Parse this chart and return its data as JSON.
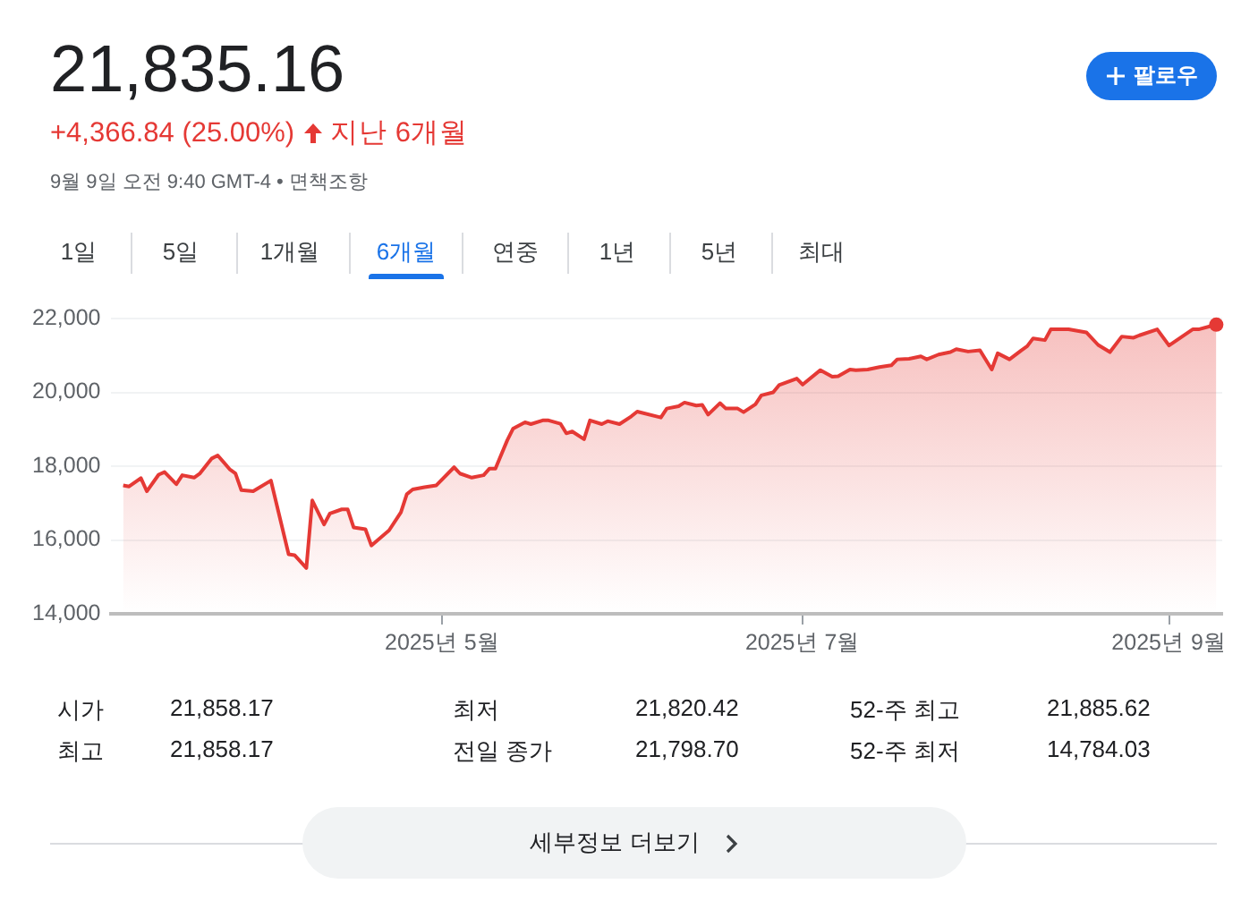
{
  "chart_data": {
    "type": "area",
    "title": "21,835.16",
    "subtitle": "+4,366.84 (25.00%)",
    "annotations": [
      "지난 6개월",
      "9월 9일 오전 9:40 GMT-4 • 면책조항",
      "팔로우",
      "1일",
      "5일",
      "1개월",
      "6개월",
      "연중",
      "1년",
      "5년",
      "최대",
      "시가",
      "21,858.17",
      "최저",
      "21,820.42",
      "52-주 최고",
      "21,885.62",
      "최고",
      "21,858.17",
      "전일 종가",
      "21,798.70",
      "52-주 최저",
      "14,784.03",
      "세부정보 더보기"
    ],
    "x": [
      "2025-03-08",
      "2025-03-09",
      "2025-03-11",
      "2025-03-12",
      "2025-03-14",
      "2025-03-15",
      "2025-03-17",
      "2025-03-18",
      "2025-03-20",
      "2025-03-21",
      "2025-03-23",
      "2025-03-24",
      "2025-03-26",
      "2025-03-27",
      "2025-03-28",
      "2025-03-30",
      "2025-04-02",
      "2025-04-05",
      "2025-04-06",
      "2025-04-08",
      "2025-04-09",
      "2025-04-11",
      "2025-04-12",
      "2025-04-14",
      "2025-04-15",
      "2025-04-16",
      "2025-04-18",
      "2025-04-19",
      "2025-04-22",
      "2025-04-24",
      "2025-04-25",
      "2025-04-26",
      "2025-04-28",
      "2025-04-30",
      "2025-05-03",
      "2025-05-04",
      "2025-05-06",
      "2025-05-08",
      "2025-05-09",
      "2025-05-10",
      "2025-05-12",
      "2025-05-13",
      "2025-05-15",
      "2025-05-16",
      "2025-05-18",
      "2025-05-19",
      "2025-05-21",
      "2025-05-22",
      "2025-05-23",
      "2025-05-25",
      "2025-05-26",
      "2025-05-28",
      "2025-05-29",
      "2025-05-31",
      "2025-06-02",
      "2025-06-03",
      "2025-06-07",
      "2025-06-08",
      "2025-06-10",
      "2025-06-11",
      "2025-06-13",
      "2025-06-14",
      "2025-06-15",
      "2025-06-17",
      "2025-06-18",
      "2025-06-20",
      "2025-06-21",
      "2025-06-23",
      "2025-06-24",
      "2025-06-26",
      "2025-06-27",
      "2025-06-30",
      "2025-07-01",
      "2025-07-04",
      "2025-07-06",
      "2025-07-07",
      "2025-07-09",
      "2025-07-10",
      "2025-07-12",
      "2025-07-14",
      "2025-07-16",
      "2025-07-17",
      "2025-07-19",
      "2025-07-21",
      "2025-07-22",
      "2025-07-24",
      "2025-07-26",
      "2025-07-27",
      "2025-07-29",
      "2025-07-31",
      "2025-08-02",
      "2025-08-03",
      "2025-08-05",
      "2025-08-07",
      "2025-08-08",
      "2025-08-09",
      "2025-08-11",
      "2025-08-12",
      "2025-08-15",
      "2025-08-18",
      "2025-08-20",
      "2025-08-22",
      "2025-08-24",
      "2025-08-26",
      "2025-08-27",
      "2025-08-30",
      "2025-09-01",
      "2025-09-05",
      "2025-09-06",
      "2025-09-09"
    ],
    "series": [
      {
        "color": "#e53935",
        "values": [
          17480,
          17450,
          17675,
          17320,
          17770,
          17840,
          17510,
          17755,
          17690,
          17805,
          18210,
          18290,
          17920,
          17805,
          17350,
          17320,
          17610,
          15610,
          15590,
          15240,
          17070,
          16420,
          16720,
          16830,
          16830,
          16340,
          16290,
          15850,
          16260,
          16750,
          17240,
          17370,
          17430,
          17480,
          17970,
          17800,
          17690,
          17755,
          17935,
          17935,
          18700,
          19020,
          19190,
          19140,
          19240,
          19240,
          19150,
          18890,
          18940,
          18730,
          19240,
          19140,
          19220,
          19140,
          19350,
          19480,
          19317,
          19560,
          19626,
          19724,
          19642,
          19659,
          19398,
          19707,
          19561,
          19561,
          19463,
          19675,
          19919,
          20000,
          20195,
          20374,
          20211,
          20602,
          20423,
          20439,
          20618,
          20602,
          20618,
          20683,
          20732,
          20894,
          20911,
          20976,
          20894,
          21024,
          21089,
          21171,
          21106,
          21138,
          20618,
          21057,
          20894,
          21138,
          21252,
          21463,
          21415,
          21707,
          21707,
          21626,
          21285,
          21089,
          21512,
          21480,
          21545,
          21707,
          21268,
          21707,
          21707,
          21835
        ]
      }
    ],
    "xlim": [
      "2025-03-06",
      "2025-09-10"
    ],
    "xticks": [
      {
        "value": "2025-05-01",
        "label": "2025년 5월"
      },
      {
        "value": "2025-07-01",
        "label": "2025년 7월"
      },
      {
        "value": "2025-09-01",
        "label": "2025년 9월"
      }
    ],
    "ylim": [
      14000,
      22000
    ],
    "yticks": [
      {
        "value": 14000,
        "label": "14,000"
      },
      {
        "value": 16000,
        "label": "16,000"
      },
      {
        "value": 18000,
        "label": "18,000"
      },
      {
        "value": 20000,
        "label": "20,000"
      },
      {
        "value": 22000,
        "label": "22,000"
      }
    ],
    "grid": "y",
    "legend": false,
    "marker": "none",
    "line_style": "solid"
  }
}
